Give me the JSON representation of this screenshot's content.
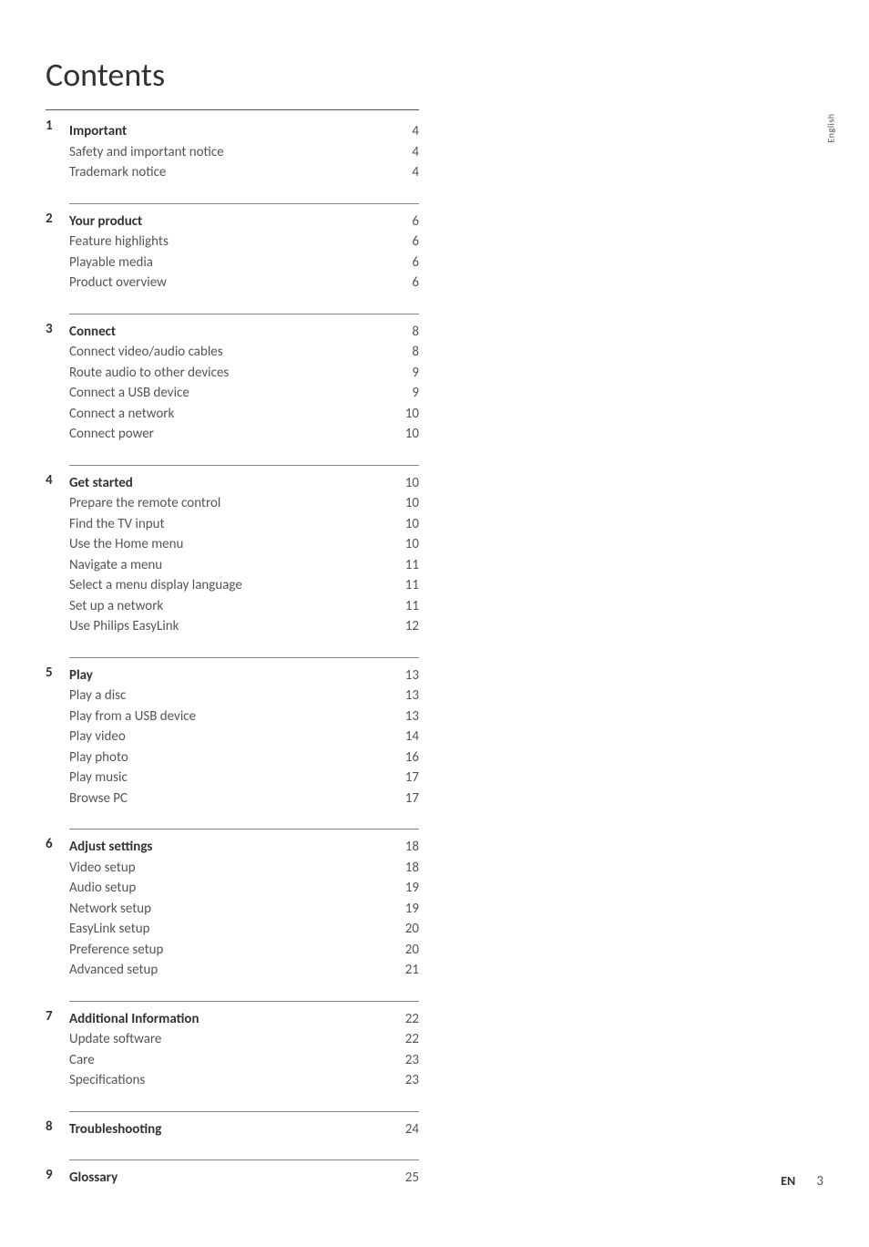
{
  "title": "Contents",
  "side_tab": "English",
  "footer": {
    "lang": "EN",
    "page": "3"
  },
  "sections": [
    {
      "num": "1",
      "head": {
        "label": "Important",
        "page": "4"
      },
      "items": [
        {
          "label": "Safety and important notice",
          "page": "4"
        },
        {
          "label": "Trademark notice",
          "page": "4"
        }
      ]
    },
    {
      "num": "2",
      "head": {
        "label": "Your product",
        "page": "6"
      },
      "items": [
        {
          "label": "Feature highlights",
          "page": "6"
        },
        {
          "label": "Playable media",
          "page": "6"
        },
        {
          "label": "Product overview",
          "page": "6"
        }
      ]
    },
    {
      "num": "3",
      "head": {
        "label": "Connect",
        "page": "8"
      },
      "items": [
        {
          "label": "Connect video/audio cables",
          "page": "8"
        },
        {
          "label": "Route audio to other devices",
          "page": "9"
        },
        {
          "label": "Connect a USB device",
          "page": "9"
        },
        {
          "label": "Connect a network",
          "page": "10"
        },
        {
          "label": "Connect power",
          "page": "10"
        }
      ]
    },
    {
      "num": "4",
      "head": {
        "label": "Get started",
        "page": "10"
      },
      "items": [
        {
          "label": "Prepare the remote control",
          "page": "10"
        },
        {
          "label": "Find the TV input",
          "page": "10"
        },
        {
          "label": "Use the Home menu",
          "page": "10"
        },
        {
          "label": "Navigate a menu",
          "page": "11"
        },
        {
          "label": "Select a menu display language",
          "page": "11"
        },
        {
          "label": "Set up a network",
          "page": "11"
        },
        {
          "label": "Use Philips EasyLink",
          "page": "12"
        }
      ]
    },
    {
      "num": "5",
      "head": {
        "label": "Play",
        "page": "13"
      },
      "items": [
        {
          "label": "Play a disc",
          "page": "13"
        },
        {
          "label": "Play from a USB device",
          "page": "13"
        },
        {
          "label": "Play video",
          "page": "14"
        },
        {
          "label": "Play photo",
          "page": "16"
        },
        {
          "label": "Play music",
          "page": "17"
        },
        {
          "label": "Browse PC",
          "page": "17"
        }
      ]
    },
    {
      "num": "6",
      "head": {
        "label": "Adjust settings",
        "page": "18"
      },
      "items": [
        {
          "label": "Video setup",
          "page": "18"
        },
        {
          "label": "Audio setup",
          "page": "19"
        },
        {
          "label": "Network setup",
          "page": "19"
        },
        {
          "label": "EasyLink setup",
          "page": "20"
        },
        {
          "label": "Preference setup",
          "page": "20"
        },
        {
          "label": "Advanced setup",
          "page": "21"
        }
      ]
    },
    {
      "num": "7",
      "head": {
        "label": "Additional Information",
        "page": "22"
      },
      "items": [
        {
          "label": "Update software",
          "page": "22"
        },
        {
          "label": "Care",
          "page": "23"
        },
        {
          "label": "Specifications",
          "page": "23"
        }
      ]
    },
    {
      "num": "8",
      "head": {
        "label": "Troubleshooting",
        "page": "24"
      },
      "items": []
    },
    {
      "num": "9",
      "head": {
        "label": "Glossary",
        "page": "25"
      },
      "items": []
    }
  ]
}
